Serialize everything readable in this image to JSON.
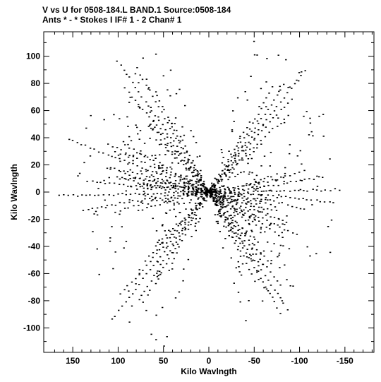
{
  "header": {
    "line1": "V vs U for 0508-184.L BAND.1   Source:0508-184",
    "line2": "Ants * - *      Stokes I  IF# 1 - 2  Chan# 1"
  },
  "chart_data": {
    "type": "scatter",
    "title": "V vs U for 0508-184.L BAND.1   Source:0508-184",
    "subtitle": "Ants * - *      Stokes I  IF# 1 - 2  Chan# 1",
    "xlabel": "Kilo Wavlngth",
    "ylabel": "Kilo Wavlngth",
    "xlim": [
      182,
      -182
    ],
    "ylim": [
      -118,
      118
    ],
    "x_reversed": true,
    "xticks": [
      150,
      100,
      50,
      0,
      -50,
      -100,
      -150
    ],
    "xtick_labels": [
      "150",
      "100",
      "50",
      "0",
      "-50",
      "-100",
      "-150"
    ],
    "yticks": [
      -100,
      -80,
      -60,
      -40,
      -20,
      0,
      20,
      40,
      60,
      80,
      100
    ],
    "ytick_labels": [
      "-100",
      "-80",
      "-60",
      "-40",
      "-20",
      "0",
      "20",
      "40",
      "60",
      "80",
      "100"
    ],
    "grid": false,
    "marker_color": "#000000",
    "arm_tips": [
      {
        "u": 110,
        "v": 107
      },
      {
        "u": -130,
        "v": 110
      },
      {
        "u": -180,
        "v": 2
      },
      {
        "u": -120,
        "v": -40
      },
      {
        "u": -110,
        "v": -108
      },
      {
        "u": 122,
        "v": -110
      },
      {
        "u": 185,
        "v": -3
      },
      {
        "u": 160,
        "v": 38
      }
    ]
  }
}
